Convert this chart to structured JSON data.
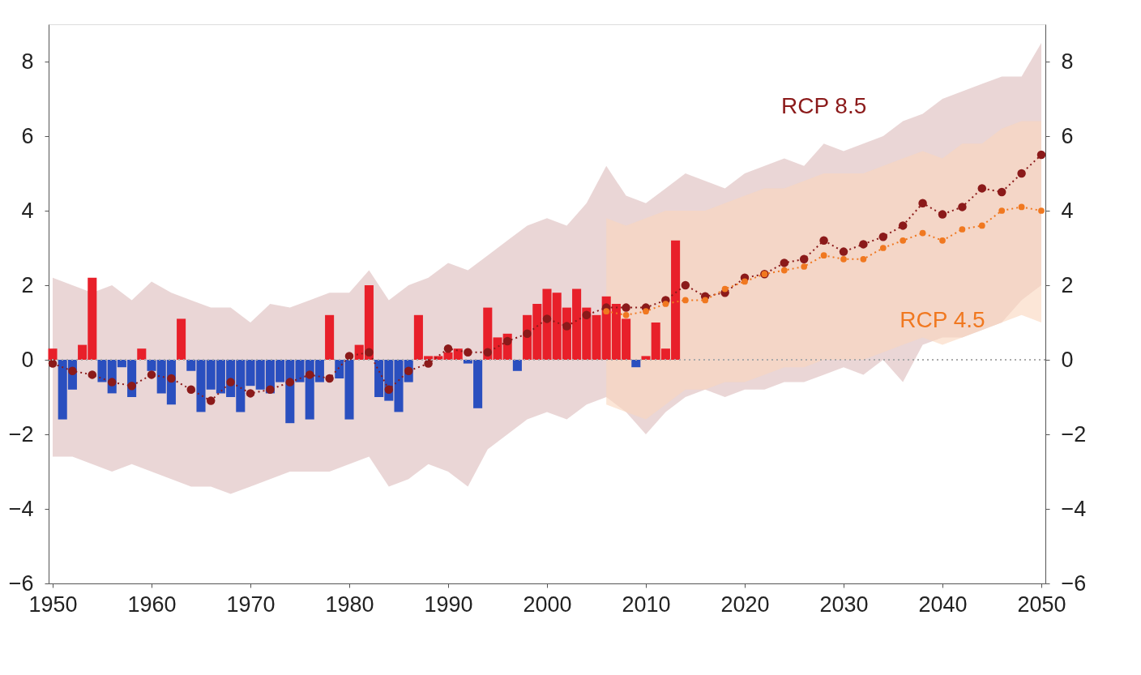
{
  "chart_data": {
    "type": "bar",
    "x": [
      1950,
      1951,
      1952,
      1953,
      1954,
      1955,
      1956,
      1957,
      1958,
      1959,
      1960,
      1961,
      1962,
      1963,
      1964,
      1965,
      1966,
      1967,
      1968,
      1969,
      1970,
      1971,
      1972,
      1973,
      1974,
      1975,
      1976,
      1977,
      1978,
      1979,
      1980,
      1981,
      1982,
      1983,
      1984,
      1985,
      1986,
      1987,
      1988,
      1989,
      1990,
      1991,
      1992,
      1993,
      1994,
      1995,
      1996,
      1997,
      1998,
      1999,
      2000,
      2001,
      2002,
      2003,
      2004,
      2005,
      2006,
      2007,
      2008,
      2009,
      2010,
      2011,
      2012,
      2013
    ],
    "series": [
      {
        "values": [
          0.3,
          -1.6,
          -0.8,
          0.4,
          2.2,
          -0.6,
          -0.9,
          -0.2,
          -1.0,
          0.3,
          -0.3,
          -0.9,
          -1.2,
          1.1,
          -0.3,
          -1.4,
          -0.8,
          -0.9,
          -1.0,
          -1.4,
          -0.7,
          -0.8,
          -0.9,
          -0.6,
          -1.7,
          -0.6,
          -1.6,
          -0.6,
          1.2,
          -0.5,
          -1.6,
          0.4,
          2.0,
          -1.0,
          -1.1,
          -1.4,
          -0.6,
          1.2,
          0.1,
          0.1,
          0.2,
          0.3,
          -0.1,
          -1.3,
          1.4,
          0.6,
          0.7,
          -0.3,
          1.2,
          1.5,
          1.9,
          1.8,
          1.4,
          1.9,
          1.4,
          1.2,
          1.7,
          1.5,
          1.1,
          -0.2,
          0.1,
          1.0,
          0.3,
          3.2
        ],
        "colors": [
          "#e8202a",
          "#2a4fbf",
          "#2a4fbf",
          "#e8202a",
          "#e8202a",
          "#2a4fbf",
          "#2a4fbf",
          "#2a4fbf",
          "#2a4fbf",
          "#e8202a",
          "#2a4fbf",
          "#2a4fbf",
          "#2a4fbf",
          "#e8202a",
          "#2a4fbf",
          "#2a4fbf",
          "#2a4fbf",
          "#2a4fbf",
          "#2a4fbf",
          "#2a4fbf",
          "#2a4fbf",
          "#2a4fbf",
          "#2a4fbf",
          "#2a4fbf",
          "#2a4fbf",
          "#2a4fbf",
          "#2a4fbf",
          "#2a4fbf",
          "#e8202a",
          "#2a4fbf",
          "#2a4fbf",
          "#e8202a",
          "#e8202a",
          "#2a4fbf",
          "#2a4fbf",
          "#2a4fbf",
          "#2a4fbf",
          "#e8202a",
          "#e8202a",
          "#e8202a",
          "#e8202a",
          "#e8202a",
          "#2a4fbf",
          "#2a4fbf",
          "#e8202a",
          "#e8202a",
          "#e8202a",
          "#2a4fbf",
          "#e8202a",
          "#e8202a",
          "#e8202a",
          "#e8202a",
          "#e8202a",
          "#e8202a",
          "#e8202a",
          "#e8202a",
          "#e8202a",
          "#e8202a",
          "#e8202a",
          "#2a4fbf",
          "#e8202a",
          "#e8202a",
          "#e8202a",
          "#e8202a"
        ]
      },
      {
        "type": "line",
        "name": "RCP 8.5",
        "color": "#8b1a1a",
        "marker": "circle",
        "line_style": "dotted",
        "x": [
          1950,
          1952,
          1954,
          1956,
          1958,
          1960,
          1962,
          1964,
          1966,
          1968,
          1970,
          1972,
          1974,
          1976,
          1978,
          1980,
          1982,
          1984,
          1986,
          1988,
          1990,
          1992,
          1994,
          1996,
          1998,
          2000,
          2002,
          2004,
          2006,
          2008,
          2010,
          2012,
          2014,
          2016,
          2018,
          2020,
          2022,
          2024,
          2026,
          2028,
          2030,
          2032,
          2034,
          2036,
          2038,
          2040,
          2042,
          2044,
          2046,
          2048,
          2050
        ],
        "values": [
          -0.1,
          -0.3,
          -0.4,
          -0.6,
          -0.7,
          -0.4,
          -0.5,
          -0.8,
          -1.1,
          -0.6,
          -0.9,
          -0.8,
          -0.6,
          -0.4,
          -0.5,
          0.1,
          0.2,
          -0.8,
          -0.3,
          -0.1,
          0.3,
          0.2,
          0.2,
          0.5,
          0.7,
          1.1,
          0.9,
          1.2,
          1.4,
          1.4,
          1.4,
          1.6,
          2.0,
          1.7,
          1.8,
          2.2,
          2.3,
          2.6,
          2.7,
          3.2,
          2.9,
          3.1,
          3.3,
          3.6,
          4.2,
          3.9,
          4.1,
          4.6,
          4.5,
          5.0,
          5.5
        ],
        "upper": [
          2.2,
          2.0,
          1.8,
          2.0,
          1.6,
          2.1,
          1.8,
          1.6,
          1.4,
          1.4,
          1.0,
          1.5,
          1.4,
          1.6,
          1.8,
          1.8,
          2.4,
          1.6,
          2.0,
          2.2,
          2.6,
          2.4,
          2.8,
          3.2,
          3.6,
          3.8,
          3.6,
          4.2,
          5.2,
          4.4,
          4.2,
          4.6,
          5.0,
          4.8,
          4.6,
          5.0,
          5.2,
          5.4,
          5.2,
          5.8,
          5.6,
          5.8,
          6.0,
          6.4,
          6.6,
          7.0,
          7.2,
          7.4,
          7.6,
          7.6,
          8.5
        ],
        "lower": [
          -2.6,
          -2.6,
          -2.8,
          -3.0,
          -2.8,
          -3.0,
          -3.2,
          -3.4,
          -3.4,
          -3.6,
          -3.4,
          -3.2,
          -3.0,
          -3.0,
          -3.0,
          -2.8,
          -2.6,
          -3.4,
          -3.2,
          -2.8,
          -3.0,
          -3.4,
          -2.4,
          -2.0,
          -1.6,
          -1.4,
          -1.6,
          -1.2,
          -1.0,
          -1.4,
          -2.0,
          -1.4,
          -1.0,
          -0.8,
          -1.0,
          -0.8,
          -0.8,
          -0.6,
          -0.6,
          -0.4,
          -0.2,
          -0.4,
          0.0,
          -0.6,
          0.4,
          0.6,
          0.6,
          0.8,
          1.0,
          1.6,
          2.0
        ]
      },
      {
        "type": "line",
        "name": "RCP 4.5",
        "color": "#f07820",
        "marker": "circle",
        "line_style": "dotted",
        "x": [
          2006,
          2008,
          2010,
          2012,
          2014,
          2016,
          2018,
          2020,
          2022,
          2024,
          2026,
          2028,
          2030,
          2032,
          2034,
          2036,
          2038,
          2040,
          2042,
          2044,
          2046,
          2048,
          2050
        ],
        "values": [
          1.3,
          1.2,
          1.3,
          1.5,
          1.6,
          1.6,
          1.9,
          2.1,
          2.3,
          2.4,
          2.5,
          2.8,
          2.7,
          2.7,
          3.0,
          3.2,
          3.4,
          3.2,
          3.5,
          3.6,
          4.0,
          4.1,
          4.0
        ],
        "upper": [
          3.8,
          3.6,
          3.8,
          4.0,
          4.0,
          4.0,
          4.2,
          4.4,
          4.6,
          4.6,
          4.8,
          5.0,
          5.0,
          5.0,
          5.2,
          5.4,
          5.6,
          5.4,
          5.8,
          5.8,
          6.2,
          6.4,
          6.4
        ],
        "lower": [
          -1.2,
          -1.4,
          -1.6,
          -1.2,
          -0.8,
          -0.8,
          -0.6,
          -0.6,
          -0.4,
          -0.2,
          -0.2,
          0.0,
          0.0,
          0.0,
          0.2,
          0.4,
          0.6,
          0.4,
          0.6,
          0.8,
          1.0,
          1.2,
          1.0
        ]
      }
    ],
    "xlim": [
      1950,
      2050
    ],
    "xticks": [
      1950,
      1960,
      1970,
      1980,
      1990,
      2000,
      2010,
      2020,
      2030,
      2040,
      2050
    ],
    "ylim": [
      -6,
      9
    ],
    "yticks": [
      -6,
      -4,
      -2,
      0,
      2,
      4,
      6,
      8
    ],
    "y2lim": [
      -6,
      9
    ],
    "y2ticks": [
      -6,
      -4,
      -2,
      0,
      2,
      4,
      6,
      8
    ],
    "ref_lines": [
      {
        "axis": "y",
        "value": 0,
        "color": "#aaaaaa",
        "line_style": "dotted"
      }
    ],
    "grid": false
  }
}
